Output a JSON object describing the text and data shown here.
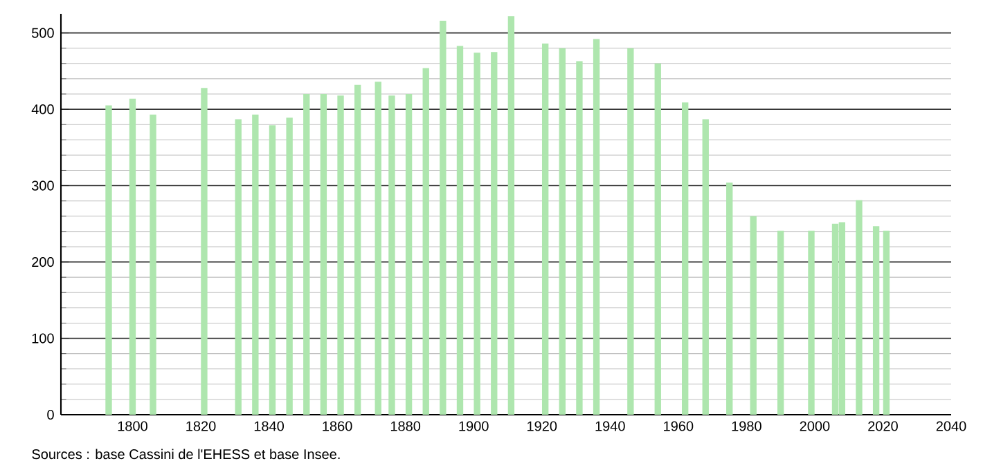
{
  "chart_data": {
    "type": "bar",
    "x": [
      1793,
      1800,
      1806,
      1821,
      1831,
      1836,
      1841,
      1846,
      1851,
      1856,
      1861,
      1866,
      1872,
      1876,
      1881,
      1886,
      1891,
      1896,
      1901,
      1906,
      1911,
      1921,
      1926,
      1931,
      1936,
      1946,
      1954,
      1962,
      1968,
      1975,
      1982,
      1990,
      1999,
      2006,
      2008,
      2013,
      2018,
      2021
    ],
    "values": [
      405,
      414,
      393,
      428,
      387,
      393,
      379,
      389,
      420,
      420,
      418,
      432,
      436,
      418,
      420,
      454,
      516,
      483,
      474,
      475,
      522,
      486,
      480,
      463,
      492,
      480,
      460,
      409,
      387,
      304,
      260,
      241,
      241,
      250,
      252,
      281,
      247,
      241
    ],
    "color": "#aee6ae",
    "xlim": [
      1779,
      2040
    ],
    "xticks": [
      1800,
      1820,
      1840,
      1860,
      1880,
      1900,
      1920,
      1940,
      1960,
      1980,
      2000,
      2020,
      2040
    ],
    "ylim": [
      0,
      525
    ],
    "yticks": [
      0,
      100,
      200,
      300,
      400,
      500
    ],
    "grid": "y",
    "annotations": [
      "Sources : base Cassini de l'EHESS et base Insee."
    ]
  }
}
